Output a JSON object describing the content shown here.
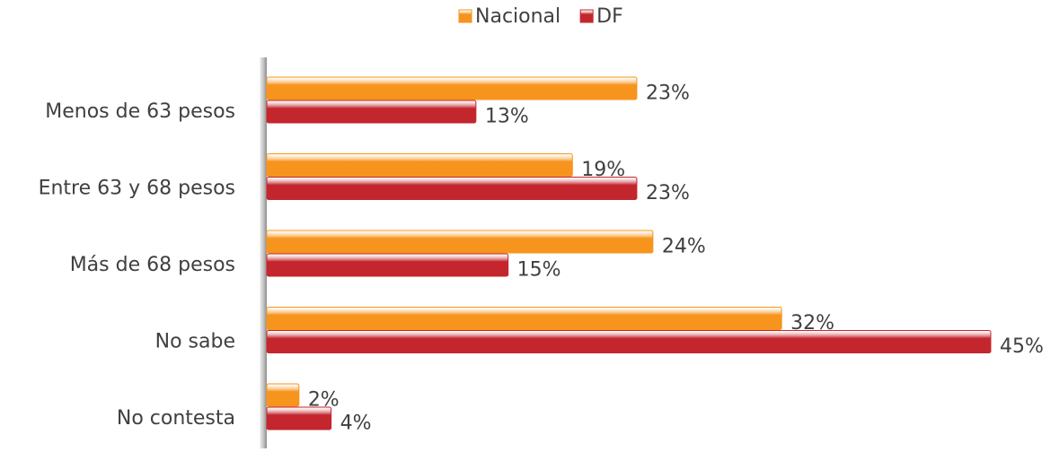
{
  "chart_data": {
    "type": "hbar",
    "categories": [
      "Menos de 63 pesos",
      "Entre 63 y 68 pesos",
      "Más de 68 pesos",
      "No sabe",
      "No contesta"
    ],
    "series": [
      {
        "name": "Nacional",
        "color": "#f7941d",
        "values": [
          23,
          19,
          24,
          32,
          2
        ],
        "value_labels": [
          "23%",
          "19%",
          "24%",
          "32%",
          "2%"
        ]
      },
      {
        "name": "DF",
        "color": "#c4262e",
        "values": [
          13,
          23,
          15,
          45,
          4
        ],
        "value_labels": [
          "13%",
          "23%",
          "15%",
          "45%",
          "4%"
        ]
      }
    ],
    "legend": "top"
  }
}
